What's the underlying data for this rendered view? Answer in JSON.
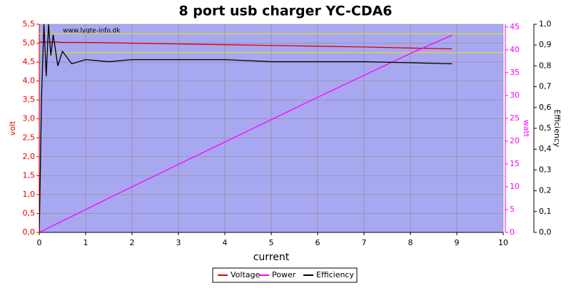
{
  "chart_data": {
    "type": "line",
    "title": "8 port usb charger YC-CDA6",
    "watermark": "www.lygte-info.dk",
    "xlabel": "current",
    "ylabel": "volt",
    "y2label": "watt",
    "y3label": "Efficiency",
    "xlim": [
      0,
      10
    ],
    "xticks": [
      0,
      1,
      2,
      3,
      4,
      5,
      6,
      7,
      8,
      9,
      10
    ],
    "ylim": [
      0,
      5.5
    ],
    "yticks": [
      {
        "value": 0,
        "label": "0,0"
      },
      {
        "value": 0.5,
        "label": "0,5"
      },
      {
        "value": 1,
        "label": "1,0"
      },
      {
        "value": 1.5,
        "label": "1,5"
      },
      {
        "value": 2,
        "label": "2,0"
      },
      {
        "value": 2.5,
        "label": "2,5"
      },
      {
        "value": 3,
        "label": "3,0"
      },
      {
        "value": 3.5,
        "label": "3,5"
      },
      {
        "value": 4,
        "label": "4,0"
      },
      {
        "value": 4.5,
        "label": "4,5"
      },
      {
        "value": 5,
        "label": "5,0"
      },
      {
        "value": 5.5,
        "label": "5,5"
      }
    ],
    "y2lim": [
      0,
      45.6
    ],
    "y2ticks": [
      0,
      5,
      10,
      15,
      20,
      25,
      30,
      35,
      40,
      45
    ],
    "y3lim": [
      0,
      1
    ],
    "y3ticks": [
      {
        "value": 0,
        "label": "0,0"
      },
      {
        "value": 0.1,
        "label": "0,1"
      },
      {
        "value": 0.2,
        "label": "0,2"
      },
      {
        "value": 0.3,
        "label": "0,3"
      },
      {
        "value": 0.4,
        "label": "0,4"
      },
      {
        "value": 0.5,
        "label": "0,5"
      },
      {
        "value": 0.6,
        "label": "0,6"
      },
      {
        "value": 0.7,
        "label": "0,7"
      },
      {
        "value": 0.8,
        "label": "0,8"
      },
      {
        "value": 0.9,
        "label": "0,9"
      },
      {
        "value": 1,
        "label": "1,0"
      }
    ],
    "grid": true,
    "reference_lines": [
      4.75,
      5.25
    ],
    "reference_color": "#e8e800",
    "legend": "bottom",
    "x": [
      0,
      0.05,
      0.1,
      0.15,
      0.2,
      0.25,
      0.3,
      0.4,
      0.5,
      0.7,
      1,
      1.5,
      2,
      3,
      4,
      5,
      6,
      7,
      8,
      8.9
    ],
    "series": [
      {
        "name": "Voltage",
        "color": "#e00000",
        "axis": "y",
        "values": [
          5.03,
          5.03,
          5.03,
          5.03,
          5.03,
          5.03,
          5.03,
          5.03,
          5.02,
          5.02,
          5.02,
          5.01,
          5.0,
          4.98,
          4.96,
          4.94,
          4.92,
          4.9,
          4.87,
          4.85
        ]
      },
      {
        "name": "Power",
        "color": "#ff00ff",
        "axis": "y2",
        "values": [
          0,
          0.25,
          0.5,
          0.75,
          1.0,
          1.26,
          1.51,
          2.01,
          2.51,
          3.51,
          5.01,
          7.5,
          9.98,
          14.9,
          19.8,
          24.7,
          29.6,
          34.4,
          39.2,
          43.2
        ]
      },
      {
        "name": "Efficiency",
        "color": "#000000",
        "axis": "y3",
        "values": [
          0,
          0.65,
          1.0,
          0.75,
          1.0,
          0.85,
          0.95,
          0.8,
          0.87,
          0.81,
          0.83,
          0.82,
          0.83,
          0.83,
          0.83,
          0.82,
          0.82,
          0.82,
          0.815,
          0.81
        ]
      }
    ]
  }
}
